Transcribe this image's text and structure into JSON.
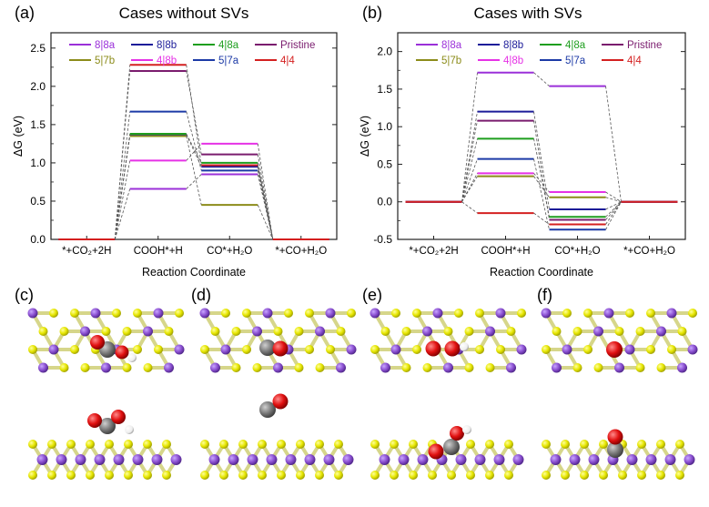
{
  "panels": {
    "a": {
      "letter": "(a)",
      "title": "Cases without SVs"
    },
    "b": {
      "letter": "(b)",
      "title": "Cases with SVs"
    },
    "c": {
      "letter": "(c)"
    },
    "d": {
      "letter": "(d)"
    },
    "e": {
      "letter": "(e)"
    },
    "f": {
      "letter": "(f)"
    }
  },
  "series_colors": {
    "8|8a": "#9b30d9",
    "8|8b": "#1c1c99",
    "4|8a": "#1e9e1e",
    "Pristine": "#7a1c6e",
    "5|7b": "#8c8c1a",
    "4|8b": "#e632e6",
    "5|7a": "#1c3aa6",
    "4|4": "#d42020"
  },
  "chart_data": [
    {
      "type": "line",
      "title": "Cases without SVs",
      "xlabel": "Reaction Coordinate",
      "ylabel": "ΔG (eV)",
      "ylim": [
        0,
        2.7
      ],
      "yticks": [
        "0.0",
        "0.5",
        "1.0",
        "1.5",
        "2.0",
        "2.5"
      ],
      "categories": [
        "*+CO₂+2H",
        "COOH*+H",
        "CO*+H₂O",
        "*+CO+H₂O"
      ],
      "legend_order": [
        "8|8a",
        "8|8b",
        "4|8a",
        "Pristine",
        "5|7b",
        "4|8b",
        "5|7a",
        "4|4"
      ],
      "series": [
        {
          "name": "8|8a",
          "values": [
            0,
            0.66,
            0.85,
            0
          ]
        },
        {
          "name": "8|8b",
          "values": [
            0,
            1.37,
            0.95,
            0
          ]
        },
        {
          "name": "4|8a",
          "values": [
            0,
            1.38,
            1.0,
            0
          ]
        },
        {
          "name": "Pristine",
          "values": [
            0,
            2.2,
            1.11,
            0
          ]
        },
        {
          "name": "5|7b",
          "values": [
            0,
            1.35,
            0.45,
            0
          ]
        },
        {
          "name": "4|8b",
          "values": [
            0,
            1.03,
            1.25,
            0
          ]
        },
        {
          "name": "5|7a",
          "values": [
            0,
            1.67,
            0.9,
            0
          ]
        },
        {
          "name": "4|4",
          "values": [
            0,
            2.28,
            0.97,
            0
          ]
        }
      ]
    },
    {
      "type": "line",
      "title": "Cases with SVs",
      "xlabel": "Reaction Coordinate",
      "ylabel": "ΔG (eV)",
      "ylim": [
        -0.5,
        2.25
      ],
      "yticks": [
        "-0.5",
        "0.0",
        "0.5",
        "1.0",
        "1.5",
        "2.0"
      ],
      "categories": [
        "*+CO₂+2H",
        "COOH*+H",
        "CO*+H₂O",
        "*+CO+H₂O"
      ],
      "legend_order": [
        "8|8a",
        "8|8b",
        "4|8a",
        "Pristine",
        "5|7b",
        "4|8b",
        "5|7a",
        "4|4"
      ],
      "series": [
        {
          "name": "8|8a",
          "values": [
            0,
            1.72,
            1.54,
            0
          ]
        },
        {
          "name": "8|8b",
          "values": [
            0,
            1.2,
            -0.1,
            0
          ]
        },
        {
          "name": "4|8a",
          "values": [
            0,
            0.84,
            -0.2,
            0
          ]
        },
        {
          "name": "Pristine",
          "values": [
            0,
            1.08,
            -0.24,
            0
          ]
        },
        {
          "name": "5|7b",
          "values": [
            0,
            0.34,
            0.06,
            0
          ]
        },
        {
          "name": "4|8b",
          "values": [
            0,
            0.38,
            0.13,
            0
          ]
        },
        {
          "name": "5|7a",
          "values": [
            0,
            0.57,
            -0.37,
            0
          ]
        },
        {
          "name": "4|4",
          "values": [
            0,
            -0.15,
            -0.3,
            0
          ]
        }
      ]
    }
  ],
  "atom_colors": {
    "S": "#e8e800",
    "Mo": "#8a4fd0",
    "C": "#7a7a7a",
    "O": "#e01010",
    "H": "#ffffff"
  }
}
